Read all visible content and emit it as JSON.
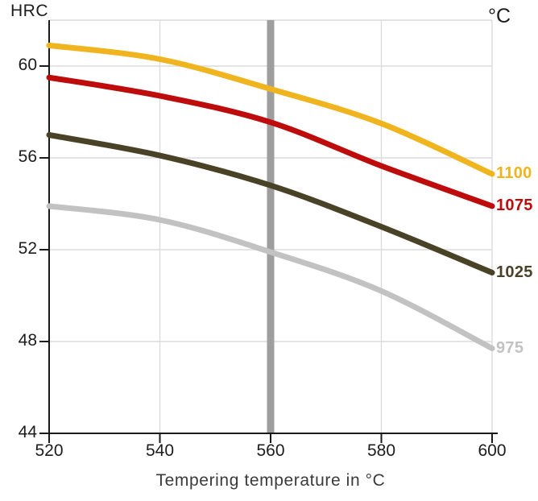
{
  "chart_data": {
    "type": "line",
    "title": "",
    "xlabel": "Tempering temperature in °C",
    "y_unit_label": "HRC",
    "series_unit_label": "°C",
    "x": [
      520,
      540,
      560,
      580,
      600
    ],
    "xlim": [
      520,
      600
    ],
    "ylim": [
      44,
      62
    ],
    "xticks": [
      520,
      540,
      560,
      580,
      600
    ],
    "yticks": [
      44,
      48,
      52,
      56,
      60
    ],
    "grid": true,
    "grid_x": [
      540,
      560,
      580,
      600
    ],
    "grid_y": [
      48,
      52,
      56,
      60,
      62
    ],
    "legend_position": "labels-at-right-curve-ends",
    "series": [
      {
        "name": "1100",
        "color": "#F0B41E",
        "values": [
          60.9,
          60.3,
          59.0,
          57.5,
          55.3
        ]
      },
      {
        "name": "1075",
        "color": "#BE0C0C",
        "values": [
          59.5,
          58.7,
          57.55,
          55.65,
          53.9
        ]
      },
      {
        "name": "1025",
        "color": "#4A4227",
        "values": [
          57.0,
          56.1,
          54.8,
          53.0,
          51.0
        ]
      },
      {
        "name": "975",
        "color": "#C2C2C2",
        "values": [
          53.9,
          53.3,
          51.9,
          50.2,
          47.7
        ]
      }
    ],
    "marker_line": {
      "x": 560,
      "color": "#9E9E9E"
    }
  },
  "style": {
    "background": "#ffffff",
    "grid_color": "#dcdcdc",
    "axis_color": "#1a1a1a",
    "tick_label_color": "#1c1c1c",
    "xlabel_color": "#3a3a3a"
  }
}
